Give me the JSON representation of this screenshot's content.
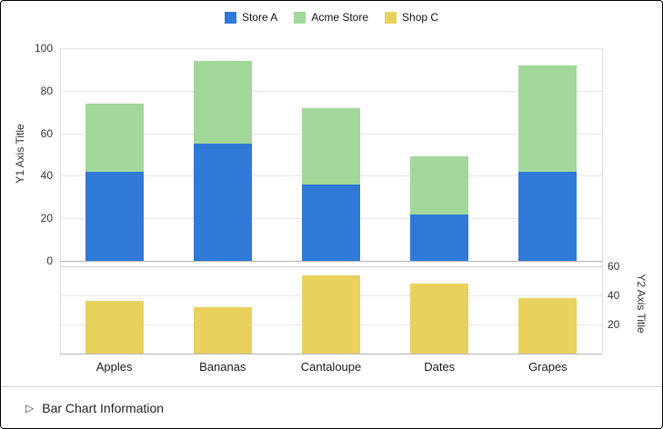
{
  "legend": {
    "items": [
      {
        "label": "Store A",
        "color": "#3079d6"
      },
      {
        "label": "Acme Store",
        "color": "#a2d79a"
      },
      {
        "label": "Shop C",
        "color": "#e9d15e"
      }
    ]
  },
  "chart_data": {
    "type": "bar",
    "stacked": true,
    "title": "",
    "categories": [
      "Apples",
      "Bananas",
      "Cantaloupe",
      "Dates",
      "Grapes"
    ],
    "series": [
      {
        "name": "Store A",
        "axis": "y1",
        "color": "#3079d6",
        "values": [
          42,
          55,
          36,
          22,
          42
        ]
      },
      {
        "name": "Acme Store",
        "axis": "y1",
        "color": "#a2d79a",
        "values": [
          32,
          39,
          36,
          27,
          50
        ]
      },
      {
        "name": "Shop C",
        "axis": "y2",
        "color": "#e9d15e",
        "values": [
          36,
          32,
          54,
          48,
          38
        ]
      }
    ],
    "y1": {
      "title": "Y1 Axis Title",
      "min": 0,
      "max": 100,
      "ticks": [
        0,
        20,
        40,
        60,
        80,
        100
      ]
    },
    "y2": {
      "title": "Y2 Axis Title",
      "min": 0,
      "max": 60,
      "ticks": [
        20,
        40,
        60
      ]
    },
    "legend_position": "top",
    "grid": true
  },
  "footer": {
    "disclosure_icon": "▷",
    "info_label": "Bar Chart Information"
  }
}
